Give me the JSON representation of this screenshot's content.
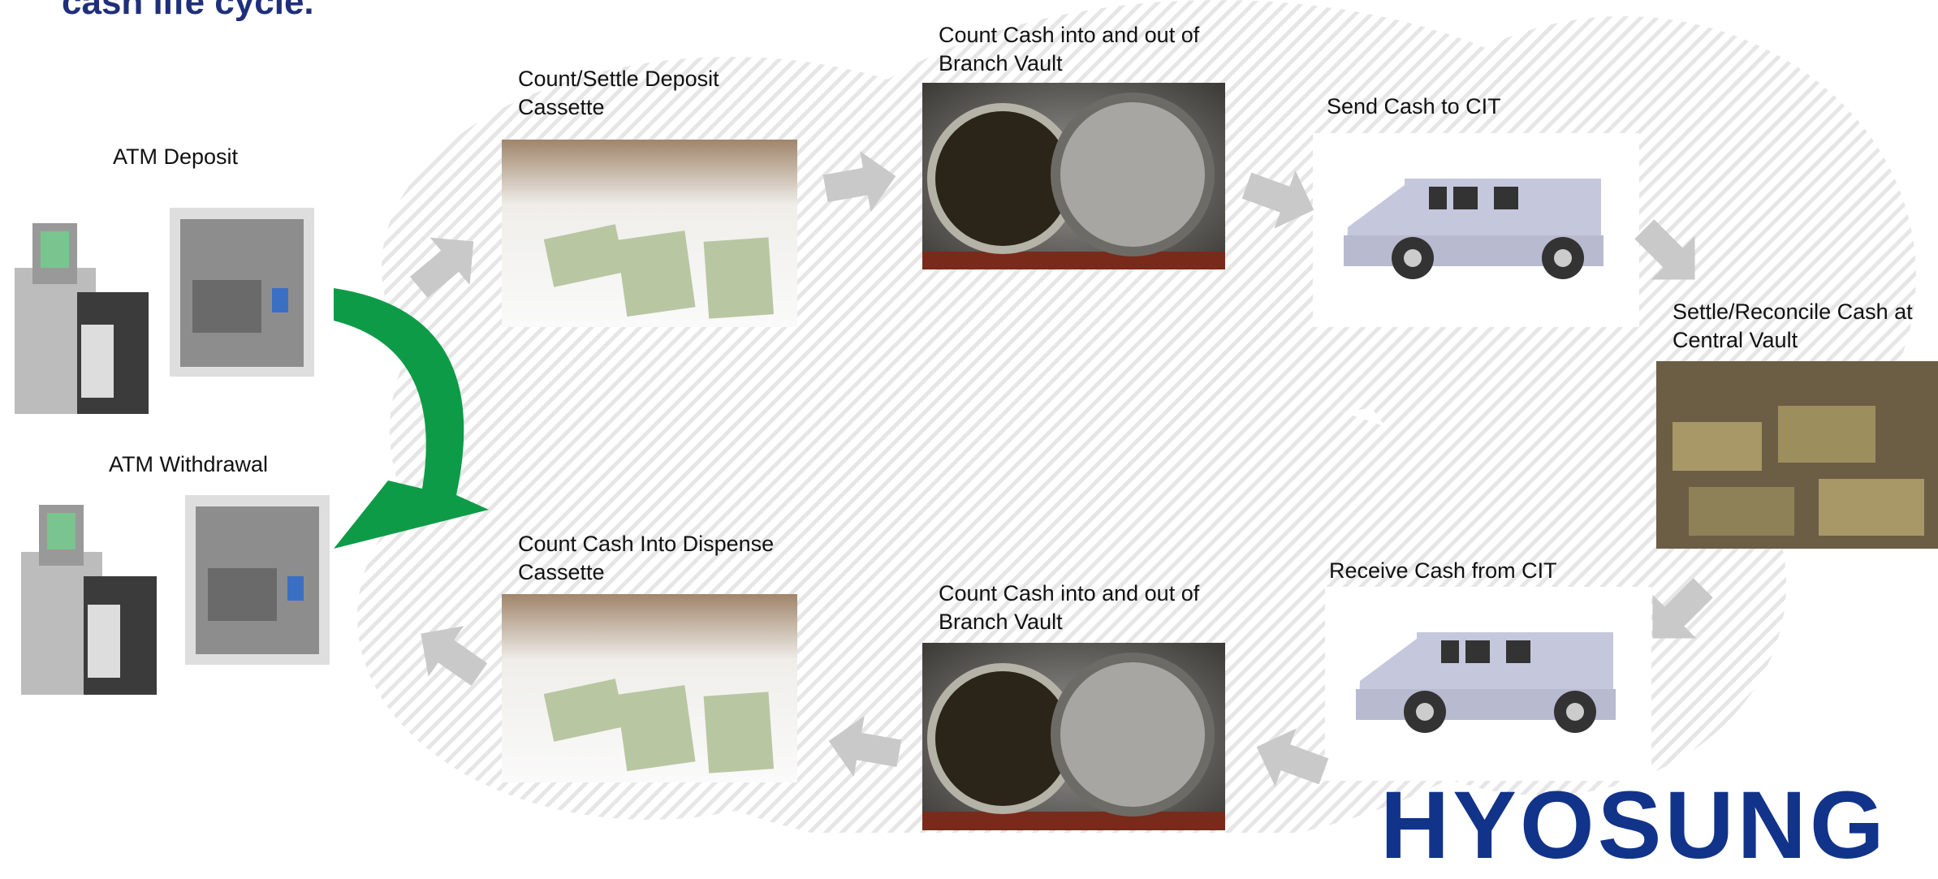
{
  "title": "cash life cycle.",
  "atm": {
    "deposit": "ATM Deposit",
    "withdrawal": "ATM Withdrawal"
  },
  "steps": [
    {
      "label": "Count/Settle Deposit Cassette"
    },
    {
      "label": "Count Cash into and out of Branch Vault"
    },
    {
      "label": "Send Cash to CIT"
    },
    {
      "label": "Settle/Reconcile Cash at Central Vault"
    },
    {
      "label": "Receive Cash from CIT"
    },
    {
      "label": "Count Cash into and out of Branch Vault"
    },
    {
      "label": "Count Cash Into Dispense Cassette"
    }
  ],
  "logo": "HYOSUNG"
}
